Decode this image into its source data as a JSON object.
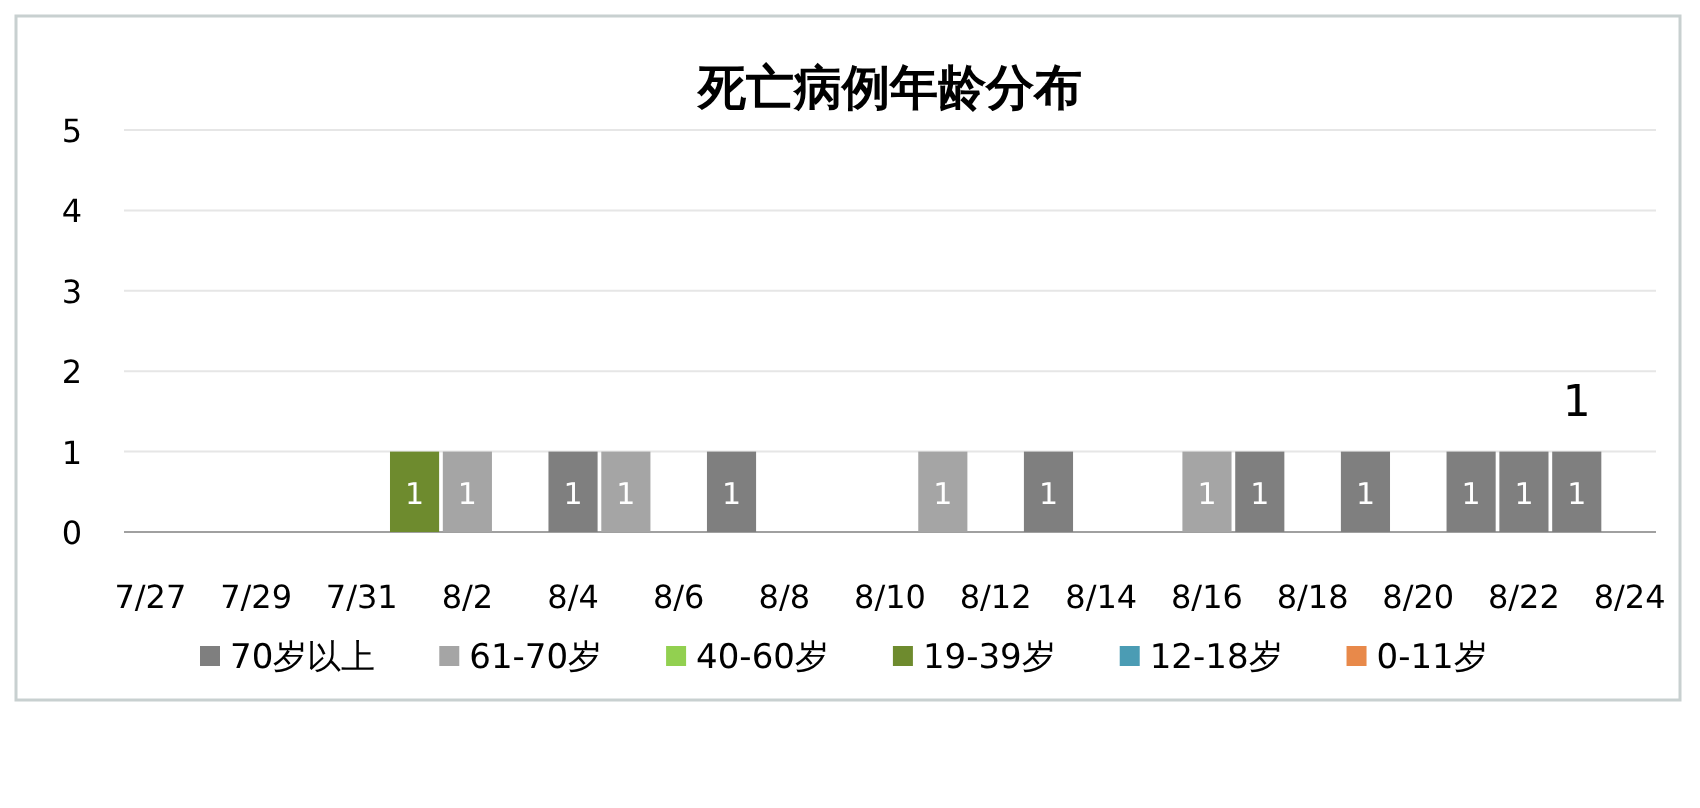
{
  "chart_data": {
    "type": "bar",
    "title": "死亡病例年龄分布",
    "stacked": true,
    "data_labels": true,
    "grid": "y",
    "legend": "bottom",
    "categories": [
      "7/27",
      null,
      "7/29",
      null,
      "7/31",
      null,
      "8/2",
      null,
      "8/4",
      null,
      "8/6",
      null,
      "8/8",
      null,
      "8/10",
      null,
      "8/12",
      null,
      "8/14",
      null,
      "8/16",
      null,
      "8/18",
      null,
      "8/20",
      null,
      "8/22",
      null,
      "8/24"
    ],
    "ylim": [
      0,
      5
    ],
    "yticks": [
      0,
      1,
      2,
      3,
      4,
      5
    ],
    "series": [
      {
        "name": "70岁以上",
        "color": "#7f7f7f",
        "values": [
          null,
          null,
          null,
          null,
          null,
          null,
          null,
          null,
          1,
          null,
          null,
          1,
          null,
          null,
          null,
          null,
          null,
          1,
          null,
          null,
          null,
          1,
          null,
          1,
          null,
          1,
          1,
          1,
          null
        ]
      },
      {
        "name": "61-70岁",
        "color": "#a5a5a5",
        "values": [
          null,
          null,
          null,
          null,
          null,
          null,
          1,
          null,
          null,
          1,
          null,
          null,
          null,
          null,
          null,
          1,
          null,
          null,
          null,
          null,
          1,
          null,
          null,
          null,
          null,
          null,
          null,
          null,
          null
        ]
      },
      {
        "name": "40-60岁",
        "color": "#92d050",
        "values": [
          null,
          null,
          null,
          null,
          null,
          null,
          null,
          null,
          null,
          null,
          null,
          null,
          null,
          null,
          null,
          null,
          null,
          null,
          null,
          null,
          null,
          null,
          null,
          null,
          null,
          null,
          null,
          null,
          null
        ]
      },
      {
        "name": "19-39岁",
        "color": "#6e8b2e",
        "values": [
          null,
          null,
          null,
          null,
          null,
          1,
          null,
          null,
          null,
          null,
          null,
          null,
          null,
          null,
          null,
          null,
          null,
          null,
          null,
          null,
          null,
          null,
          null,
          null,
          null,
          null,
          null,
          null,
          null
        ]
      },
      {
        "name": "12-18岁",
        "color": "#4b9cb4",
        "values": [
          null,
          null,
          null,
          null,
          null,
          null,
          null,
          null,
          null,
          null,
          null,
          null,
          null,
          null,
          null,
          null,
          null,
          null,
          null,
          null,
          null,
          null,
          null,
          null,
          null,
          null,
          null,
          null,
          null
        ]
      },
      {
        "name": "0-11岁",
        "color": "#e8894a",
        "values": [
          null,
          null,
          null,
          null,
          null,
          null,
          null,
          null,
          null,
          null,
          null,
          null,
          null,
          null,
          null,
          null,
          null,
          null,
          null,
          null,
          null,
          null,
          null,
          null,
          null,
          null,
          null,
          null,
          null
        ]
      }
    ],
    "totals": [
      null,
      null,
      null,
      null,
      null,
      null,
      null,
      null,
      null,
      null,
      null,
      null,
      null,
      null,
      null,
      null,
      null,
      null,
      null,
      null,
      null,
      null,
      null,
      null,
      null,
      null,
      null,
      "1",
      null
    ]
  }
}
